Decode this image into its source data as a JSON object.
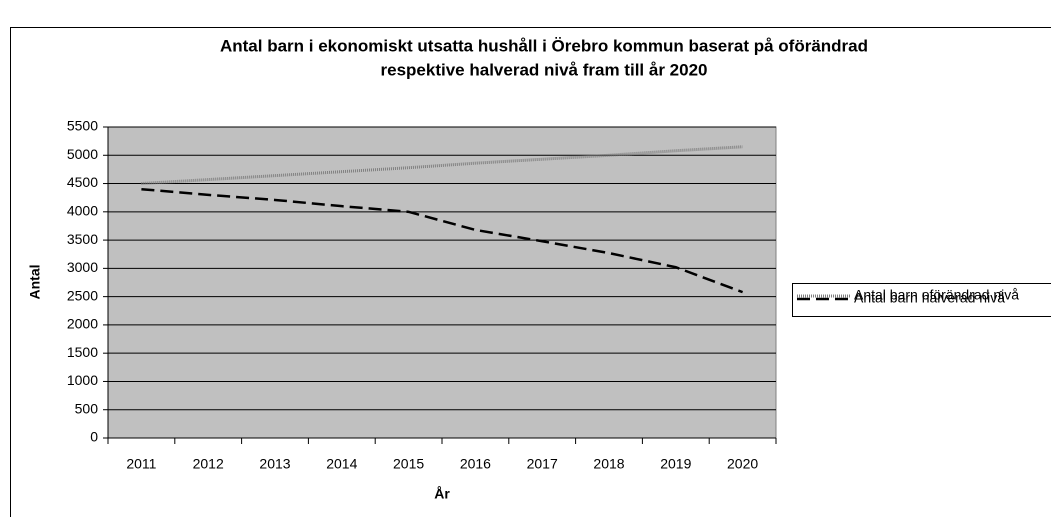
{
  "chart_data": {
    "type": "line",
    "title": [
      "Antal barn i ekonomiskt utsatta hushåll i Örebro kommun baserat på oförändrad",
      "respektive halverad nivå fram till år 2020"
    ],
    "x_label": "År",
    "y_label": "Antal",
    "categories": [
      "2011",
      "2012",
      "2013",
      "2014",
      "2015",
      "2016",
      "2017",
      "2018",
      "2019",
      "2020"
    ],
    "series": [
      {
        "name": "Antal barn oförändrad nivå",
        "color": "#808080",
        "style": "dotted",
        "values": [
          4500,
          4570,
          4640,
          4710,
          4780,
          4860,
          4930,
          5000,
          5080,
          5150
        ]
      },
      {
        "name": "Antal barn halverad nivå",
        "color": "#000000",
        "style": "dashed",
        "values": [
          4400,
          4300,
          4210,
          4100,
          4000,
          3680,
          3480,
          3270,
          3020,
          2580
        ]
      }
    ],
    "ylim": [
      0,
      5500
    ],
    "yticks": [
      0,
      500,
      1000,
      1500,
      2000,
      2500,
      3000,
      3500,
      4000,
      4500,
      5000,
      5500
    ],
    "grid": true,
    "plot_background": "#c0c0c0",
    "legend": "right"
  }
}
